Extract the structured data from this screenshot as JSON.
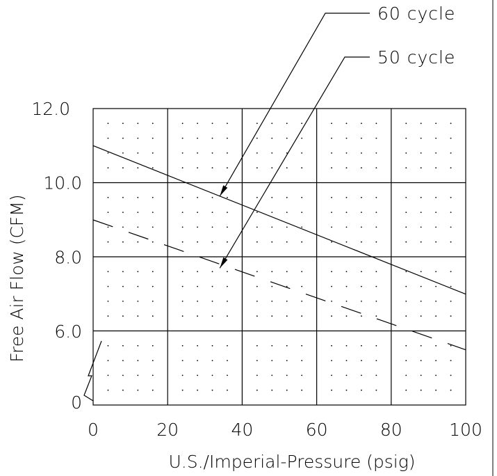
{
  "chart_data": {
    "type": "line",
    "xlabel": "U.S./Imperial-Pressure (psig)",
    "ylabel": "Free Air Flow (CFM)",
    "x_ticks": [
      "0",
      "20",
      "40",
      "60",
      "80",
      "100"
    ],
    "y_ticks": [
      "0",
      "6.0",
      "8.0",
      "10.0",
      "12.0"
    ],
    "xlim": [
      0,
      100
    ],
    "ylim_displayed": [
      6.0,
      12.0
    ],
    "y_axis_break": true,
    "grid": true,
    "dotted_minor_grid": true,
    "series": [
      {
        "name": "60 cycle",
        "style": "solid",
        "x": [
          0,
          100
        ],
        "y": [
          11.0,
          7.0
        ]
      },
      {
        "name": "50 cycle",
        "style": "dashed",
        "x": [
          0,
          100
        ],
        "y": [
          9.0,
          5.5
        ]
      }
    ],
    "annotations": [
      {
        "text": "60 cycle",
        "points_to": {
          "x": 34,
          "y": 9.64
        }
      },
      {
        "text": "50 cycle",
        "points_to": {
          "x": 34,
          "y": 7.7
        }
      }
    ]
  }
}
